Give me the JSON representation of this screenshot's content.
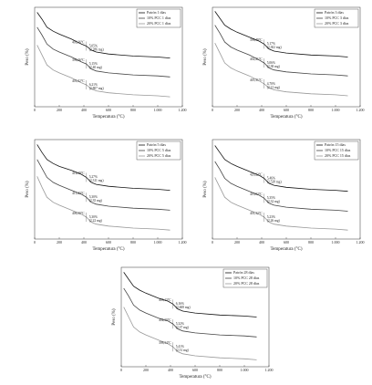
{
  "chart_data": [
    {
      "type": "line",
      "xlabel": "Temperatura (°C)",
      "ylabel": "Peso (%)",
      "xlim": [
        0,
        1200
      ],
      "xticks": [
        0,
        200,
        400,
        600,
        800,
        {
          "value": 1000,
          "label": "1.000"
        },
        {
          "value": 1200,
          "label": "1.200"
        }
      ],
      "ylim": [
        0,
        100
      ],
      "legend": "upper right",
      "x": [
        20,
        60,
        100,
        150,
        200,
        300,
        380,
        420,
        460,
        500,
        600,
        800,
        1000,
        1100
      ],
      "series": [
        {
          "name": "Patrón 1 días",
          "color": "#111111",
          "values": [
            95,
            88,
            80,
            76,
            73,
            68,
            63,
            61,
            57,
            55,
            53,
            51,
            50,
            49
          ]
        },
        {
          "name": "10% PCC 1 días",
          "color": "#444444",
          "values": [
            80,
            72,
            63,
            58,
            55,
            50,
            45,
            43,
            38,
            36,
            34,
            32,
            31,
            30
          ]
        },
        {
          "name": "20% PCC 1 días",
          "color": "#999999",
          "values": [
            62,
            52,
            42,
            37,
            34,
            29,
            24,
            22,
            18,
            16,
            14,
            12,
            11,
            10
          ]
        }
      ],
      "annotations": [
        [
          "403,36°C",
          "5,05%",
          "(2,286 mg)"
        ],
        [
          "396,36°C",
          "5,15%",
          "(2,40 mg)"
        ],
        [
          "401,02°C",
          "6,21%",
          "(2,807 mg)"
        ]
      ]
    },
    {
      "type": "line",
      "xlabel": "Temperatura (°C)",
      "ylabel": "Peso (%)",
      "xlim": [
        0,
        1200
      ],
      "xticks": [
        0,
        200,
        400,
        600,
        800,
        {
          "value": 1000,
          "label": "1.000"
        },
        {
          "value": 1200,
          "label": "1.200"
        }
      ],
      "ylim": [
        0,
        100
      ],
      "legend": "upper right",
      "x": [
        20,
        60,
        100,
        150,
        200,
        300,
        380,
        420,
        460,
        500,
        600,
        800,
        1000,
        1100
      ],
      "series": [
        {
          "name": "Patrón 3 días",
          "color": "#111111",
          "values": [
            96,
            89,
            82,
            78,
            75,
            70,
            66,
            63,
            58,
            56,
            54,
            52,
            51,
            50
          ]
        },
        {
          "name": "10% PCC 3 días",
          "color": "#444444",
          "values": [
            82,
            74,
            65,
            60,
            57,
            52,
            47,
            44,
            39,
            37,
            35,
            33,
            32,
            31
          ]
        },
        {
          "name": "20% PCC 3 días",
          "color": "#999999",
          "values": [
            64,
            54,
            44,
            39,
            36,
            31,
            26,
            23,
            19,
            17,
            15,
            13,
            12,
            11
          ]
        }
      ],
      "annotations": [
        [
          "398,49°C",
          "5,17%",
          "(2,302 mg)"
        ],
        [
          "402,21°C",
          "5,06%",
          "(2,38 mg)"
        ],
        [
          "405,31°C",
          "4,70%",
          "(2,21 mg)"
        ]
      ]
    },
    {
      "type": "line",
      "xlabel": "Temperatura (°C)",
      "ylabel": "Peso (%)",
      "xlim": [
        0,
        1200
      ],
      "xticks": [
        0,
        200,
        400,
        600,
        800,
        {
          "value": 1000,
          "label": "1.000"
        },
        {
          "value": 1200,
          "label": "1.200"
        }
      ],
      "ylim": [
        0,
        100
      ],
      "legend": "upper right",
      "x": [
        20,
        60,
        100,
        150,
        200,
        300,
        380,
        420,
        460,
        500,
        600,
        800,
        1000,
        1100
      ],
      "series": [
        {
          "name": "Patrón 5 días",
          "color": "#111111",
          "values": [
            95,
            87,
            80,
            76,
            73,
            69,
            65,
            62,
            57,
            55,
            53,
            51,
            50,
            49
          ]
        },
        {
          "name": "10% PCC 5 días",
          "color": "#444444",
          "values": [
            80,
            71,
            62,
            57,
            54,
            49,
            45,
            42,
            37,
            35,
            33,
            31,
            30,
            29
          ]
        },
        {
          "name": "20% PCC 5 días",
          "color": "#999999",
          "values": [
            63,
            52,
            42,
            37,
            34,
            29,
            25,
            22,
            17,
            15,
            13,
            11,
            10,
            9
          ]
        }
      ],
      "annotations": [
        [
          "414,39°C",
          "5,27%",
          "(2,311 mg)"
        ],
        [
          "411,23°C",
          "5,30%",
          "(2,35 mg)"
        ],
        [
          "406,30°C",
          "5,30%",
          "(2,22 mg)"
        ]
      ]
    },
    {
      "type": "line",
      "xlabel": "Temperatura (°C)",
      "ylabel": "Peso (%)",
      "xlim": [
        0,
        1200
      ],
      "xticks": [
        0,
        200,
        400,
        600,
        800,
        {
          "value": 1000,
          "label": "1.000"
        },
        {
          "value": 1200,
          "label": "1.200"
        }
      ],
      "ylim": [
        0,
        100
      ],
      "legend": "upper right",
      "x": [
        20,
        60,
        100,
        150,
        200,
        300,
        380,
        420,
        460,
        500,
        600,
        800,
        1000,
        1100
      ],
      "series": [
        {
          "name": "Patrón 15 días",
          "color": "#111111",
          "values": [
            94,
            87,
            80,
            76,
            73,
            68,
            64,
            61,
            56,
            54,
            52,
            50,
            49,
            48
          ]
        },
        {
          "name": "10% PCC 15 días",
          "color": "#444444",
          "values": [
            78,
            70,
            61,
            56,
            53,
            48,
            44,
            41,
            36,
            34,
            32,
            30,
            29,
            28
          ]
        },
        {
          "name": "20% PCC 15 días",
          "color": "#999999",
          "values": [
            62,
            52,
            42,
            37,
            34,
            29,
            25,
            22,
            17,
            15,
            13,
            11,
            10,
            9
          ]
        }
      ],
      "annotations": [
        [
          "420,22°C",
          "5,46%",
          "(2,528 mg)"
        ],
        [
          "410,02°C",
          "5,35%",
          "(2,32 mg)"
        ],
        [
          "401,32°C",
          "5,23%",
          "(2,26 mg)"
        ]
      ]
    },
    {
      "type": "line",
      "xlabel": "Temperatura (°C)",
      "ylabel": "Peso (%)",
      "xlim": [
        0,
        1200
      ],
      "xticks": [
        0,
        200,
        400,
        600,
        800,
        {
          "value": 1000,
          "label": "1.000"
        },
        {
          "value": 1200,
          "label": "1.200"
        }
      ],
      "ylim": [
        0,
        100
      ],
      "legend": "upper right",
      "x": [
        20,
        60,
        100,
        150,
        200,
        300,
        380,
        420,
        460,
        500,
        600,
        800,
        1000,
        1100
      ],
      "series": [
        {
          "name": "Patrón 28 días",
          "color": "#111111",
          "values": [
            95,
            88,
            81,
            77,
            74,
            69,
            66,
            63,
            58,
            56,
            54,
            52,
            51,
            50
          ]
        },
        {
          "name": "10% PCC 28 días",
          "color": "#444444",
          "values": [
            79,
            71,
            62,
            57,
            54,
            49,
            46,
            43,
            38,
            36,
            34,
            32,
            31,
            30
          ]
        },
        {
          "name": "20% PCC 28 días",
          "color": "#999999",
          "values": [
            60,
            50,
            40,
            35,
            32,
            27,
            23,
            20,
            15,
            13,
            11,
            9,
            8,
            7
          ]
        }
      ],
      "annotations": [
        [
          "403,13°C",
          "6,16%",
          "(2,608 mg)"
        ],
        [
          "402,30°C",
          "5,32%",
          "(2,37 mg)"
        ],
        [
          "398,34°C",
          "5,41%",
          "(2,51 mg)"
        ]
      ]
    }
  ]
}
